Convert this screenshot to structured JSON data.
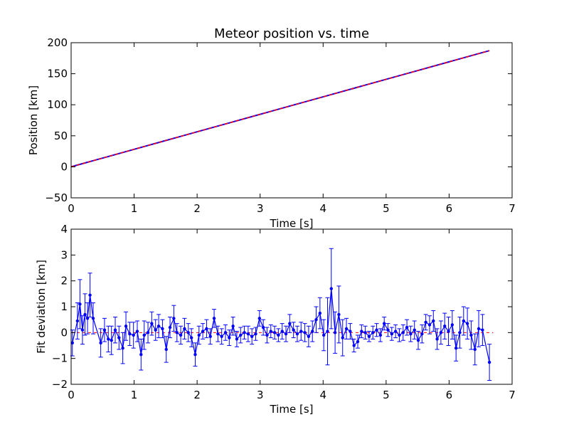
{
  "chart_data": [
    {
      "type": "line",
      "title": "Meteor position vs. time",
      "xlabel": "Time [s]",
      "ylabel": "Position [km]",
      "xlim": [
        0,
        7
      ],
      "ylim": [
        -50,
        200
      ],
      "xticks": [
        "0",
        "1",
        "2",
        "3",
        "4",
        "5",
        "6",
        "7"
      ],
      "yticks": [
        "−50",
        "0",
        "50",
        "100",
        "150",
        "200"
      ],
      "grid": false,
      "series": [
        {
          "style": "line",
          "color": "#0000ff",
          "x": [
            0.0,
            0.3,
            0.6,
            1.0,
            1.5,
            2.0,
            2.5,
            3.0,
            3.5,
            4.0,
            4.5,
            5.0,
            5.5,
            6.0,
            6.5,
            6.64
          ],
          "y": [
            0.0,
            8.5,
            16.9,
            28.2,
            42.3,
            56.4,
            70.5,
            84.6,
            98.7,
            112.8,
            126.9,
            141.0,
            155.1,
            169.2,
            183.3,
            187.2
          ]
        },
        {
          "style": "dashed",
          "color": "#ff0000",
          "x": [
            0.0,
            6.64
          ],
          "y": [
            0.0,
            187.2
          ]
        }
      ]
    },
    {
      "type": "scatter",
      "xlabel": "Time [s]",
      "ylabel": "Fit deviation [km]",
      "xlim": [
        0,
        7
      ],
      "ylim": [
        -2,
        4
      ],
      "xticks": [
        "0",
        "1",
        "2",
        "3",
        "4",
        "5",
        "6",
        "7"
      ],
      "yticks": [
        "−2",
        "−1",
        "0",
        "1",
        "2",
        "3",
        "4"
      ],
      "grid": false,
      "baseline": {
        "style": "dashed",
        "color": "#ff0000",
        "y": 0
      },
      "series": [
        {
          "style": "line-markers-errorbars",
          "color": "#0000ff",
          "x": [
            0.02,
            0.1,
            0.14,
            0.18,
            0.22,
            0.26,
            0.3,
            0.35,
            0.47,
            0.53,
            0.59,
            0.64,
            0.7,
            0.76,
            0.82,
            0.87,
            0.93,
            0.99,
            1.05,
            1.11,
            1.16,
            1.22,
            1.28,
            1.34,
            1.39,
            1.45,
            1.51,
            1.57,
            1.63,
            1.68,
            1.74,
            1.8,
            1.86,
            1.91,
            1.97,
            2.03,
            2.09,
            2.15,
            2.21,
            2.27,
            2.33,
            2.39,
            2.45,
            2.51,
            2.57,
            2.63,
            2.69,
            2.75,
            2.81,
            2.87,
            2.93,
            2.99,
            3.05,
            3.11,
            3.17,
            3.23,
            3.29,
            3.35,
            3.41,
            3.47,
            3.53,
            3.59,
            3.65,
            3.71,
            3.77,
            3.83,
            3.89,
            3.95,
            4.01,
            4.07,
            4.13,
            4.19,
            4.25,
            4.31,
            4.37,
            4.43,
            4.49,
            4.55,
            4.61,
            4.67,
            4.73,
            4.79,
            4.85,
            4.91,
            4.97,
            5.03,
            5.09,
            5.15,
            5.21,
            5.27,
            5.33,
            5.39,
            5.45,
            5.51,
            5.57,
            5.63,
            5.69,
            5.75,
            5.81,
            5.87,
            5.93,
            5.99,
            6.05,
            6.11,
            6.17,
            6.23,
            6.29,
            6.35,
            6.41,
            6.47,
            6.53,
            6.64
          ],
          "y": [
            -0.4,
            0.45,
            1.1,
            0.1,
            0.7,
            0.55,
            1.45,
            0.55,
            -0.4,
            0.1,
            -0.25,
            -0.3,
            0.1,
            -0.2,
            -0.6,
            0.25,
            -0.05,
            -0.1,
            0.05,
            -0.85,
            -0.1,
            0.0,
            0.35,
            0.1,
            0.25,
            0.15,
            -0.65,
            0.2,
            0.55,
            0.0,
            -0.1,
            0.15,
            0.0,
            -0.2,
            -0.85,
            -0.1,
            0.05,
            0.15,
            -0.15,
            0.55,
            -0.05,
            -0.15,
            0.0,
            -0.2,
            0.25,
            -0.25,
            -0.1,
            0.0,
            -0.05,
            -0.15,
            -0.05,
            0.55,
            0.2,
            -0.1,
            0.05,
            0.0,
            -0.1,
            0.05,
            -0.05,
            0.35,
            0.1,
            -0.05,
            0.05,
            0.0,
            -0.15,
            0.05,
            0.5,
            0.75,
            -0.1,
            0.05,
            1.7,
            0.0,
            0.7,
            -0.2,
            0.15,
            0.05,
            -0.5,
            -0.35,
            0.05,
            0.0,
            -0.15,
            0.0,
            0.1,
            -0.1,
            0.35,
            0.1,
            -0.05,
            0.05,
            -0.1,
            0.0,
            0.2,
            -0.05,
            0.1,
            -0.3,
            -0.05,
            0.4,
            0.3,
            0.45,
            -0.25,
            0.0,
            0.25,
            0.05,
            0.3,
            -0.6,
            0.0,
            0.45,
            0.35,
            -0.1,
            -0.65,
            0.15,
            0.1,
            -1.15
          ],
          "err": [
            0.5,
            0.7,
            0.95,
            0.55,
            0.8,
            0.6,
            0.85,
            0.6,
            0.55,
            0.45,
            0.5,
            0.55,
            0.5,
            0.45,
            0.6,
            0.55,
            0.45,
            0.5,
            0.4,
            0.6,
            0.55,
            0.4,
            0.45,
            0.4,
            0.45,
            0.35,
            0.5,
            0.4,
            0.5,
            0.35,
            0.35,
            0.4,
            0.35,
            0.35,
            0.45,
            0.35,
            0.3,
            0.35,
            0.3,
            0.35,
            0.3,
            0.3,
            0.3,
            0.3,
            0.35,
            0.3,
            0.3,
            0.25,
            0.3,
            0.3,
            0.25,
            0.3,
            0.3,
            0.3,
            0.25,
            0.25,
            0.25,
            0.3,
            0.3,
            0.35,
            0.3,
            0.3,
            0.35,
            0.35,
            0.4,
            0.4,
            0.5,
            0.6,
            0.6,
            1.3,
            1.55,
            0.8,
            1.1,
            0.7,
            0.4,
            0.3,
            0.25,
            0.25,
            0.25,
            0.25,
            0.2,
            0.25,
            0.25,
            0.25,
            0.25,
            0.25,
            0.25,
            0.25,
            0.25,
            0.3,
            0.3,
            0.3,
            0.35,
            0.35,
            0.35,
            0.3,
            0.35,
            0.4,
            0.4,
            0.45,
            0.5,
            0.55,
            0.55,
            0.5,
            0.6,
            0.55,
            0.6,
            0.55,
            0.6,
            0.7,
            0.6,
            0.7
          ]
        }
      ]
    }
  ]
}
